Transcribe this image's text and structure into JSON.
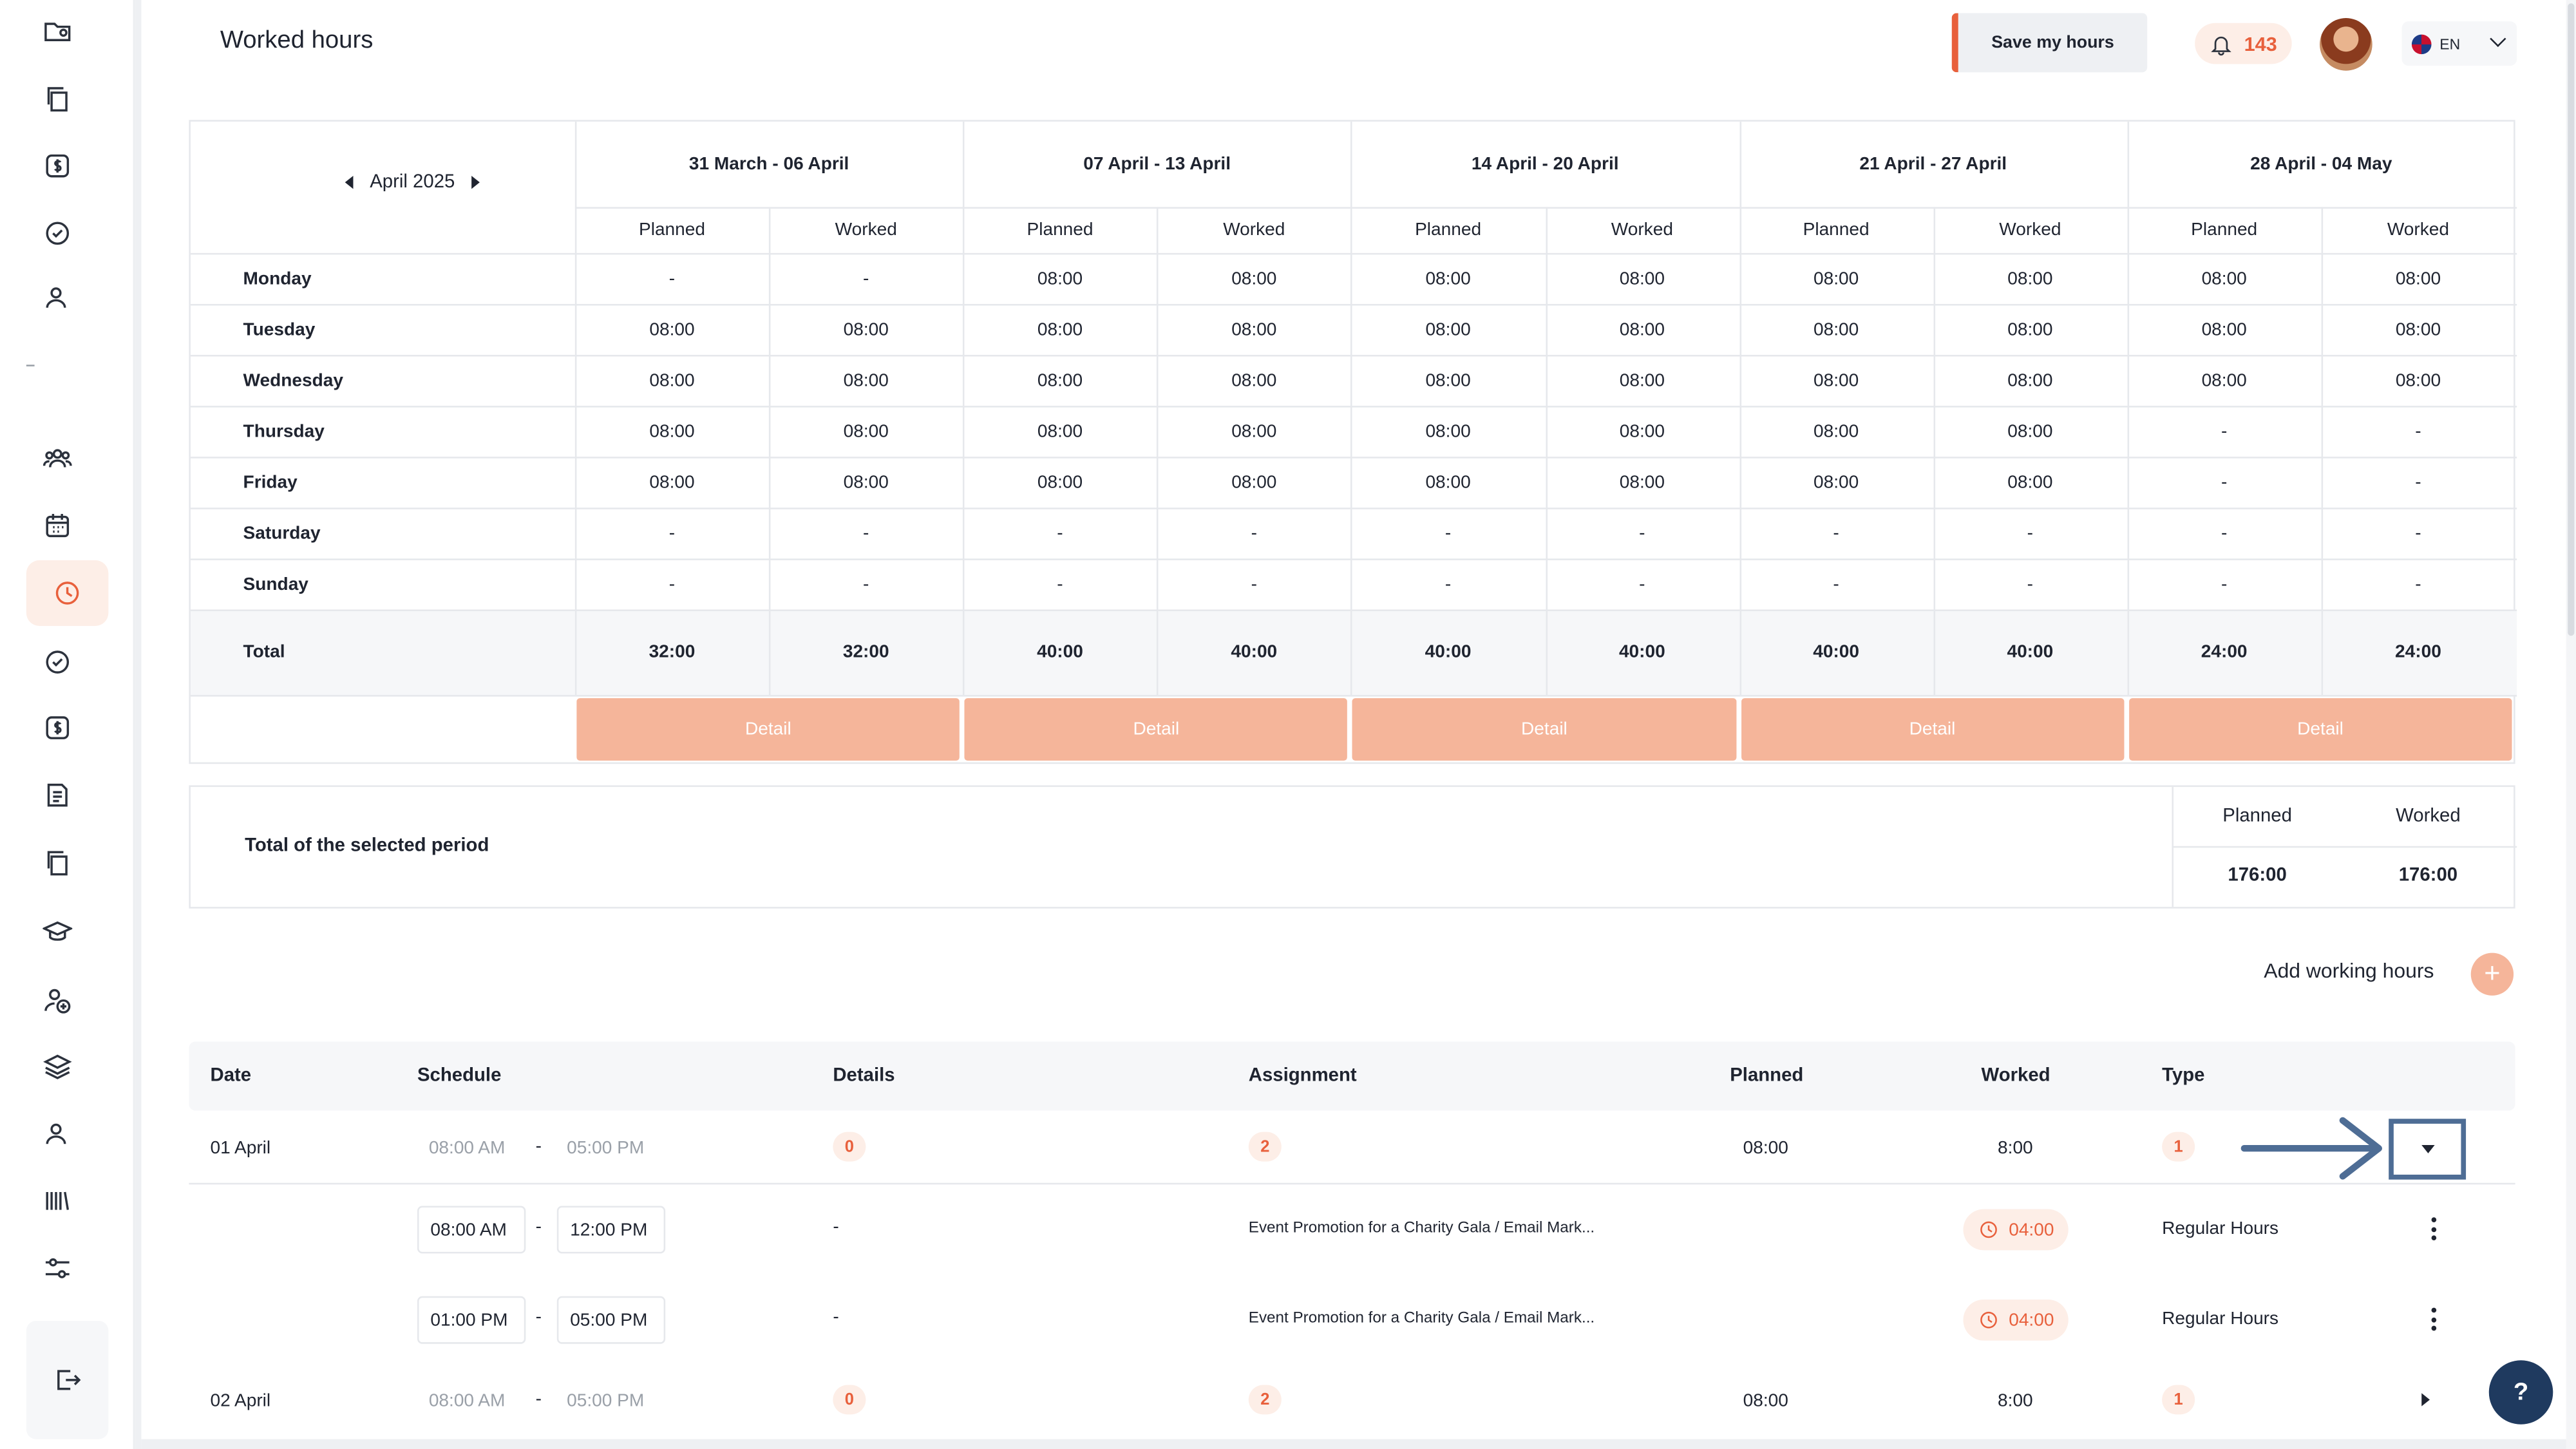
{
  "header": {
    "title": "Worked hours",
    "save_label": "Save my hours",
    "notifications": "143",
    "language": "EN"
  },
  "sidebar": {
    "icons": [
      "folder-user-icon",
      "copy-icon",
      "dollar-icon",
      "check-circle-icon",
      "user-icon",
      "users-icon",
      "calendar-icon",
      "clock-icon",
      "check-circle-icon",
      "dollar-icon",
      "document-icon",
      "copy-icon",
      "graduation-cap-icon",
      "user-add-icon",
      "layers-icon",
      "user-icon",
      "barcode-icon",
      "sliders-icon"
    ],
    "active": "clock-icon"
  },
  "calendar": {
    "month_label": "April 2025",
    "weeks": [
      "31 March - 06 April",
      "07 April - 13 April",
      "14 April - 20 April",
      "21 April - 27 April",
      "28 April - 04 May"
    ],
    "sub_headers": {
      "planned": "Planned",
      "worked": "Worked"
    },
    "days": [
      {
        "name": "Monday",
        "values": [
          "-",
          "-",
          "08:00",
          "08:00",
          "08:00",
          "08:00",
          "08:00",
          "08:00",
          "08:00",
          "08:00"
        ]
      },
      {
        "name": "Tuesday",
        "values": [
          "08:00",
          "08:00",
          "08:00",
          "08:00",
          "08:00",
          "08:00",
          "08:00",
          "08:00",
          "08:00",
          "08:00"
        ]
      },
      {
        "name": "Wednesday",
        "values": [
          "08:00",
          "08:00",
          "08:00",
          "08:00",
          "08:00",
          "08:00",
          "08:00",
          "08:00",
          "08:00",
          "08:00"
        ]
      },
      {
        "name": "Thursday",
        "values": [
          "08:00",
          "08:00",
          "08:00",
          "08:00",
          "08:00",
          "08:00",
          "08:00",
          "08:00",
          "-",
          "-"
        ]
      },
      {
        "name": "Friday",
        "values": [
          "08:00",
          "08:00",
          "08:00",
          "08:00",
          "08:00",
          "08:00",
          "08:00",
          "08:00",
          "-",
          "-"
        ]
      },
      {
        "name": "Saturday",
        "values": [
          "-",
          "-",
          "-",
          "-",
          "-",
          "-",
          "-",
          "-",
          "-",
          "-"
        ]
      },
      {
        "name": "Sunday",
        "values": [
          "-",
          "-",
          "-",
          "-",
          "-",
          "-",
          "-",
          "-",
          "-",
          "-"
        ]
      }
    ],
    "total_label": "Total",
    "totals": [
      "32:00",
      "32:00",
      "40:00",
      "40:00",
      "40:00",
      "40:00",
      "40:00",
      "40:00",
      "24:00",
      "24:00"
    ],
    "detail_label": "Detail"
  },
  "period": {
    "label": "Total of the selected period",
    "planned_label": "Planned",
    "worked_label": "Worked",
    "planned": "176:00",
    "worked": "176:00"
  },
  "add_working_hours": "Add working hours",
  "list": {
    "headers": {
      "date": "Date",
      "schedule": "Schedule",
      "details": "Details",
      "assignment": "Assignment",
      "planned": "Planned",
      "worked": "Worked",
      "type": "Type"
    },
    "days": [
      {
        "date": "01 April",
        "start": "08:00 AM",
        "end": "05:00 PM",
        "details": "0",
        "assignments": "2",
        "planned": "08:00",
        "worked": "8:00",
        "type_count": "1",
        "entries": [
          {
            "start": "08:00 AM",
            "end": "12:00 PM",
            "details": "-",
            "assignment": "Event Promotion for a Charity Gala / Email Mark...",
            "hours": "04:00",
            "type": "Regular Hours"
          },
          {
            "start": "01:00 PM",
            "end": "05:00 PM",
            "details": "-",
            "assignment": "Event Promotion for a Charity Gala / Email Mark...",
            "hours": "04:00",
            "type": "Regular Hours"
          }
        ]
      },
      {
        "date": "02 April",
        "start": "08:00 AM",
        "end": "05:00 PM",
        "details": "0",
        "assignments": "2",
        "planned": "08:00",
        "worked": "8:00",
        "type_count": "1"
      }
    ],
    "separator": "-"
  },
  "help": "?"
}
